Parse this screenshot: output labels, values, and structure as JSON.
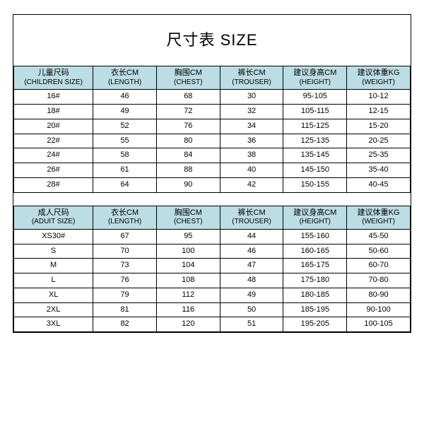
{
  "title": "尺寸表 SIZE",
  "header_bg": "#bcdde4",
  "row_bg": "#ffffff",
  "border_color": "#000000",
  "columns": [
    {
      "zh": "儿童尺码",
      "en": "(CHILDREN SIZE)"
    },
    {
      "zh": "衣长CM",
      "en": "(LENGTH)"
    },
    {
      "zh": "胸围CM",
      "en": "(CHEST)"
    },
    {
      "zh": "裤长CM",
      "en": "(TROUSER)"
    },
    {
      "zh": "建议身高CM",
      "en": "(HEIGHT)"
    },
    {
      "zh": "建议体重KG",
      "en": "(WEIGHT)"
    }
  ],
  "children_rows": [
    [
      "16#",
      "46",
      "68",
      "30",
      "95-105",
      "10-12"
    ],
    [
      "18#",
      "49",
      "72",
      "32",
      "105-115",
      "12-15"
    ],
    [
      "20#",
      "52",
      "76",
      "34",
      "115-125",
      "15-20"
    ],
    [
      "22#",
      "55",
      "80",
      "36",
      "125-135",
      "20-25"
    ],
    [
      "24#",
      "58",
      "84",
      "38",
      "135-145",
      "25-35"
    ],
    [
      "26#",
      "61",
      "88",
      "40",
      "145-150",
      "35-40"
    ],
    [
      "28#",
      "64",
      "90",
      "42",
      "150-155",
      "40-45"
    ]
  ],
  "adult_columns": [
    {
      "zh": "成人尺码",
      "en": "(ADUIT SIZE)"
    },
    {
      "zh": "衣长CM",
      "en": "(LENGTH)"
    },
    {
      "zh": "胸围CM",
      "en": "(CHEST)"
    },
    {
      "zh": "裤长CM",
      "en": "(TROUSER)"
    },
    {
      "zh": "建议身高CM",
      "en": "(HEIGHT)"
    },
    {
      "zh": "建议体重KG",
      "en": "(WEIGHT)"
    }
  ],
  "adult_rows": [
    [
      "XS30#",
      "67",
      "95",
      "44",
      "155-160",
      "45-50"
    ],
    [
      "S",
      "70",
      "100",
      "46",
      "160-165",
      "50-60"
    ],
    [
      "M",
      "73",
      "104",
      "47",
      "165-175",
      "60-70"
    ],
    [
      "L",
      "76",
      "108",
      "48",
      "175-180",
      "70-80"
    ],
    [
      "XL",
      "79",
      "112",
      "49",
      "180-185",
      "80-90"
    ],
    [
      "2XL",
      "81",
      "116",
      "50",
      "185-195",
      "90-100"
    ],
    [
      "3XL",
      "82",
      "120",
      "51",
      "195-205",
      "100-105"
    ]
  ]
}
